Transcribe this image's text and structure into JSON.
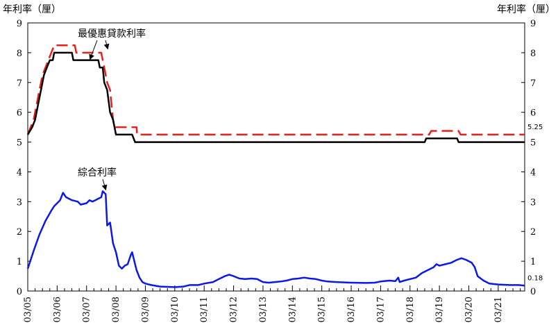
{
  "chart_data": {
    "type": "line",
    "y_axis_title_left": "年利率（厘）",
    "y_axis_title_right": "年利率（厘）",
    "ylim": [
      0,
      9
    ],
    "yticks": [
      0,
      1,
      2,
      3,
      4,
      5,
      6,
      7,
      8,
      9
    ],
    "x_range": [
      2005.0,
      2021.9
    ],
    "xticks": [
      {
        "label": "03/05",
        "x": 2005
      },
      {
        "label": "03/06",
        "x": 2006
      },
      {
        "label": "03/07",
        "x": 2007
      },
      {
        "label": "03/08",
        "x": 2008
      },
      {
        "label": "03/09",
        "x": 2009
      },
      {
        "label": "03/10",
        "x": 2010
      },
      {
        "label": "03/11",
        "x": 2011
      },
      {
        "label": "03/12",
        "x": 2012
      },
      {
        "label": "03/13",
        "x": 2013
      },
      {
        "label": "03/14",
        "x": 2014
      },
      {
        "label": "03/15",
        "x": 2015
      },
      {
        "label": "03/16",
        "x": 2016
      },
      {
        "label": "03/17",
        "x": 2017
      },
      {
        "label": "03/18",
        "x": 2018
      },
      {
        "label": "03/19",
        "x": 2019
      },
      {
        "label": "03/20",
        "x": 2020
      },
      {
        "label": "03/21",
        "x": 2021
      }
    ],
    "annotations": [
      {
        "text": "最優惠貸款利率",
        "target_x": 2007.2,
        "target_y": 8.0
      },
      {
        "text": "綜合利率",
        "target_x": 2007.6,
        "target_y": 3.35
      }
    ],
    "end_labels": [
      {
        "text": "5.25",
        "value": 5.25
      },
      {
        "text": "0.18",
        "value": 0.18
      }
    ],
    "series": [
      {
        "key": "prime_red",
        "color": "#e8201c",
        "dash": "16,7",
        "points": [
          [
            2005.0,
            5.25
          ],
          [
            2005.1,
            5.5
          ],
          [
            2005.2,
            5.75
          ],
          [
            2005.3,
            6.25
          ],
          [
            2005.4,
            6.75
          ],
          [
            2005.5,
            7.25
          ],
          [
            2005.6,
            7.5
          ],
          [
            2005.7,
            7.75
          ],
          [
            2005.8,
            8.0
          ],
          [
            2005.9,
            8.25
          ],
          [
            2006.6,
            8.25
          ],
          [
            2006.65,
            8.0
          ],
          [
            2007.5,
            8.0
          ],
          [
            2007.55,
            7.75
          ],
          [
            2007.6,
            7.5
          ],
          [
            2007.7,
            7.0
          ],
          [
            2007.8,
            6.75
          ],
          [
            2007.85,
            6.25
          ],
          [
            2007.9,
            5.75
          ],
          [
            2007.95,
            5.5
          ],
          [
            2008.7,
            5.5
          ],
          [
            2008.72,
            5.25
          ],
          [
            2018.65,
            5.25
          ],
          [
            2018.72,
            5.375
          ],
          [
            2019.6,
            5.375
          ],
          [
            2019.65,
            5.375
          ],
          [
            2019.72,
            5.25
          ],
          [
            2021.9,
            5.25
          ]
        ]
      },
      {
        "key": "prime_black",
        "color": "#000000",
        "dash": "",
        "points": [
          [
            2005.0,
            5.25
          ],
          [
            2005.15,
            5.5
          ],
          [
            2005.25,
            5.75
          ],
          [
            2005.35,
            6.25
          ],
          [
            2005.45,
            6.75
          ],
          [
            2005.55,
            7.25
          ],
          [
            2005.65,
            7.5
          ],
          [
            2005.75,
            7.75
          ],
          [
            2005.85,
            7.75
          ],
          [
            2005.9,
            8.0
          ],
          [
            2006.5,
            8.0
          ],
          [
            2006.55,
            7.75
          ],
          [
            2007.4,
            7.75
          ],
          [
            2007.45,
            7.5
          ],
          [
            2007.55,
            7.5
          ],
          [
            2007.6,
            7.0
          ],
          [
            2007.7,
            6.75
          ],
          [
            2007.8,
            6.0
          ],
          [
            2007.9,
            5.75
          ],
          [
            2008.0,
            5.25
          ],
          [
            2008.55,
            5.25
          ],
          [
            2008.65,
            5.0
          ],
          [
            2018.5,
            5.0
          ],
          [
            2018.55,
            5.125
          ],
          [
            2019.6,
            5.125
          ],
          [
            2019.65,
            5.0
          ],
          [
            2021.9,
            5.0
          ]
        ]
      },
      {
        "key": "composite",
        "color": "#0a18e8",
        "dash": "",
        "points": [
          [
            2005.0,
            0.75
          ],
          [
            2005.2,
            1.35
          ],
          [
            2005.4,
            1.9
          ],
          [
            2005.6,
            2.35
          ],
          [
            2005.8,
            2.7
          ],
          [
            2005.9,
            2.85
          ],
          [
            2006.0,
            2.95
          ],
          [
            2006.1,
            3.05
          ],
          [
            2006.2,
            3.3
          ],
          [
            2006.3,
            3.15
          ],
          [
            2006.5,
            3.05
          ],
          [
            2006.7,
            3.0
          ],
          [
            2006.8,
            2.9
          ],
          [
            2007.0,
            2.95
          ],
          [
            2007.1,
            3.05
          ],
          [
            2007.2,
            3.0
          ],
          [
            2007.3,
            3.05
          ],
          [
            2007.4,
            3.1
          ],
          [
            2007.5,
            3.15
          ],
          [
            2007.55,
            3.35
          ],
          [
            2007.65,
            3.25
          ],
          [
            2007.7,
            2.2
          ],
          [
            2007.8,
            2.3
          ],
          [
            2007.9,
            1.6
          ],
          [
            2008.0,
            1.3
          ],
          [
            2008.1,
            0.85
          ],
          [
            2008.2,
            0.75
          ],
          [
            2008.3,
            0.85
          ],
          [
            2008.4,
            0.9
          ],
          [
            2008.5,
            1.2
          ],
          [
            2008.55,
            1.3
          ],
          [
            2008.6,
            1.1
          ],
          [
            2008.7,
            0.7
          ],
          [
            2008.8,
            0.45
          ],
          [
            2008.9,
            0.3
          ],
          [
            2009.0,
            0.25
          ],
          [
            2009.2,
            0.2
          ],
          [
            2009.5,
            0.15
          ],
          [
            2010.0,
            0.13
          ],
          [
            2010.3,
            0.15
          ],
          [
            2010.5,
            0.2
          ],
          [
            2010.8,
            0.2
          ],
          [
            2011.0,
            0.25
          ],
          [
            2011.3,
            0.3
          ],
          [
            2011.5,
            0.4
          ],
          [
            2011.7,
            0.5
          ],
          [
            2011.85,
            0.55
          ],
          [
            2012.0,
            0.5
          ],
          [
            2012.2,
            0.42
          ],
          [
            2012.4,
            0.4
          ],
          [
            2012.6,
            0.42
          ],
          [
            2012.8,
            0.4
          ],
          [
            2013.0,
            0.3
          ],
          [
            2013.2,
            0.28
          ],
          [
            2013.4,
            0.3
          ],
          [
            2013.6,
            0.32
          ],
          [
            2013.8,
            0.35
          ],
          [
            2014.0,
            0.4
          ],
          [
            2014.2,
            0.42
          ],
          [
            2014.4,
            0.45
          ],
          [
            2014.6,
            0.42
          ],
          [
            2014.8,
            0.4
          ],
          [
            2015.0,
            0.35
          ],
          [
            2015.2,
            0.32
          ],
          [
            2015.5,
            0.3
          ],
          [
            2016.0,
            0.28
          ],
          [
            2016.5,
            0.27
          ],
          [
            2016.8,
            0.28
          ],
          [
            2017.0,
            0.32
          ],
          [
            2017.3,
            0.35
          ],
          [
            2017.5,
            0.33
          ],
          [
            2017.6,
            0.45
          ],
          [
            2017.65,
            0.3
          ],
          [
            2017.8,
            0.35
          ],
          [
            2018.0,
            0.4
          ],
          [
            2018.2,
            0.45
          ],
          [
            2018.4,
            0.6
          ],
          [
            2018.6,
            0.7
          ],
          [
            2018.8,
            0.8
          ],
          [
            2018.9,
            0.9
          ],
          [
            2019.0,
            0.85
          ],
          [
            2019.2,
            0.9
          ],
          [
            2019.4,
            0.95
          ],
          [
            2019.6,
            1.05
          ],
          [
            2019.75,
            1.1
          ],
          [
            2019.9,
            1.05
          ],
          [
            2020.1,
            0.95
          ],
          [
            2020.2,
            0.8
          ],
          [
            2020.3,
            0.5
          ],
          [
            2020.5,
            0.35
          ],
          [
            2020.7,
            0.25
          ],
          [
            2021.0,
            0.22
          ],
          [
            2021.4,
            0.2
          ],
          [
            2021.7,
            0.2
          ],
          [
            2021.9,
            0.18
          ]
        ]
      }
    ]
  }
}
